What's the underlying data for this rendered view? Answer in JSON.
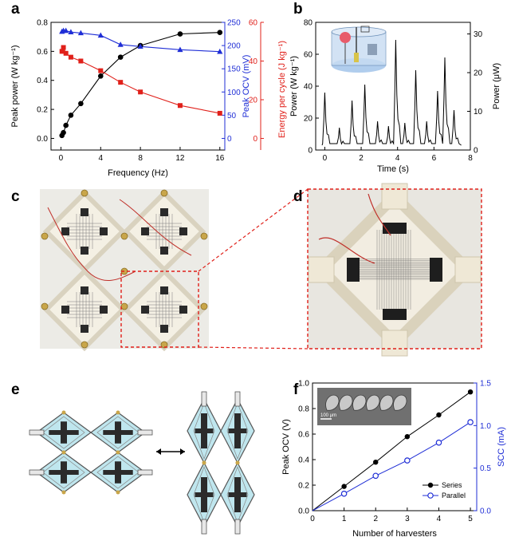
{
  "panels": {
    "a": "a",
    "b": "b",
    "c": "c",
    "d": "d",
    "e": "e",
    "f": "f"
  },
  "chart_data": [
    {
      "panel": "a",
      "type": "scatter",
      "xlabel": "Frequency (Hz)",
      "xlim": [
        -1,
        16.5
      ],
      "xticks": [
        0,
        4,
        8,
        12,
        16
      ],
      "left_axis": {
        "label": "Peak power (W kg⁻¹)",
        "ylim": [
          -0.08,
          0.8
        ],
        "ticks": [
          0.0,
          0.2,
          0.4,
          0.6,
          0.8
        ],
        "tick_labels": [
          "0.0",
          "0.2",
          "0.4",
          "0.6",
          "0.8"
        ],
        "color": "#000000"
      },
      "right_axis_1": {
        "label": "Peak OCV (mV)",
        "ylim": [
          -25,
          250
        ],
        "ticks": [
          0,
          50,
          100,
          150,
          200,
          250
        ],
        "tick_labels": [
          "0",
          "50",
          "100",
          "150",
          "200",
          "250"
        ],
        "color": "#1f2ed6"
      },
      "right_axis_2": {
        "label": "Energy per cycle (J kg⁻¹)",
        "ylim": [
          -6,
          60
        ],
        "ticks": [
          0,
          20,
          40,
          60
        ],
        "tick_labels": [
          "0",
          "20",
          "40",
          "60"
        ],
        "color": "#e0201a"
      },
      "series": [
        {
          "name": "Peak power",
          "axis": "left",
          "color": "#000000",
          "marker": "circle",
          "x": [
            0.1,
            0.25,
            0.5,
            1,
            2,
            4,
            6,
            8,
            12,
            16
          ],
          "y": [
            0.02,
            0.04,
            0.09,
            0.16,
            0.24,
            0.43,
            0.56,
            0.64,
            0.72,
            0.73
          ]
        },
        {
          "name": "Peak OCV",
          "axis": "right_1",
          "color": "#1f2ed6",
          "marker": "triangle",
          "x": [
            0.1,
            0.25,
            0.5,
            1,
            2,
            4,
            6,
            8,
            12,
            16
          ],
          "y": [
            230,
            232,
            232,
            229,
            227,
            222,
            202,
            198,
            191,
            187
          ]
        },
        {
          "name": "Energy per cycle",
          "axis": "right_2",
          "color": "#e0201a",
          "marker": "square",
          "x": [
            0.1,
            0.25,
            0.5,
            1,
            2,
            4,
            6,
            8,
            12,
            16
          ],
          "y": [
            45,
            47,
            44,
            42,
            40,
            35,
            29,
            24,
            17,
            13
          ]
        }
      ]
    },
    {
      "panel": "b",
      "type": "line",
      "xlabel": "Time (s)",
      "xlim": [
        -0.5,
        8
      ],
      "xticks": [
        0,
        2,
        4,
        6,
        8
      ],
      "left_axis": {
        "label": "Power (W kg⁻¹)",
        "ylim": [
          0,
          80
        ],
        "ticks": [
          0,
          20,
          40,
          60,
          80
        ],
        "tick_labels": [
          "0",
          "20",
          "40",
          "60",
          "80"
        ]
      },
      "right_axis": {
        "label": "Power (μW)",
        "ylim": [
          0,
          33
        ],
        "ticks": [
          0,
          10,
          20,
          30
        ],
        "tick_labels": [
          "0",
          "10",
          "20",
          "30"
        ]
      },
      "peaks": [
        {
          "t": 0.0,
          "v": 36
        },
        {
          "t": 0.8,
          "v": 14
        },
        {
          "t": 1.5,
          "v": 31
        },
        {
          "t": 2.2,
          "v": 41
        },
        {
          "t": 2.9,
          "v": 18
        },
        {
          "t": 3.5,
          "v": 15
        },
        {
          "t": 3.9,
          "v": 69
        },
        {
          "t": 4.4,
          "v": 17
        },
        {
          "t": 5.0,
          "v": 50
        },
        {
          "t": 5.6,
          "v": 18
        },
        {
          "t": 6.2,
          "v": 37
        },
        {
          "t": 6.6,
          "v": 58
        },
        {
          "t": 7.1,
          "v": 25
        }
      ]
    },
    {
      "panel": "f",
      "type": "line",
      "xlabel": "Number of harvesters",
      "xlim": [
        0,
        5.2
      ],
      "xticks": [
        0,
        1,
        2,
        3,
        4,
        5
      ],
      "left_axis": {
        "label": "Peak OCV (V)",
        "ylim": [
          0,
          1.0
        ],
        "ticks": [
          0.0,
          0.2,
          0.4,
          0.6,
          0.8,
          1.0
        ],
        "tick_labels": [
          "0.0",
          "0.2",
          "0.4",
          "0.6",
          "0.8",
          "1.0"
        ]
      },
      "right_axis": {
        "label": "SCC (mA)",
        "ylim": [
          0,
          1.5
        ],
        "ticks": [
          0.0,
          0.5,
          1.0,
          1.5
        ],
        "tick_labels": [
          "0.0",
          "0.5",
          "1.0",
          "1.5"
        ],
        "color": "#1f2ed6"
      },
      "series": [
        {
          "name": "Series",
          "axis": "left",
          "color": "#000000",
          "marker": "filled-circle",
          "x": [
            0,
            1,
            2,
            3,
            4,
            5
          ],
          "y": [
            0.0,
            0.19,
            0.38,
            0.58,
            0.75,
            0.93
          ]
        },
        {
          "name": "Parallel",
          "axis": "right",
          "color": "#1f2ed6",
          "marker": "open-circle",
          "x": [
            0,
            1,
            2,
            3,
            4,
            5
          ],
          "y": [
            0.0,
            0.2,
            0.41,
            0.59,
            0.8,
            1.04
          ]
        }
      ],
      "inset_scale_label": "100 μm"
    }
  ]
}
